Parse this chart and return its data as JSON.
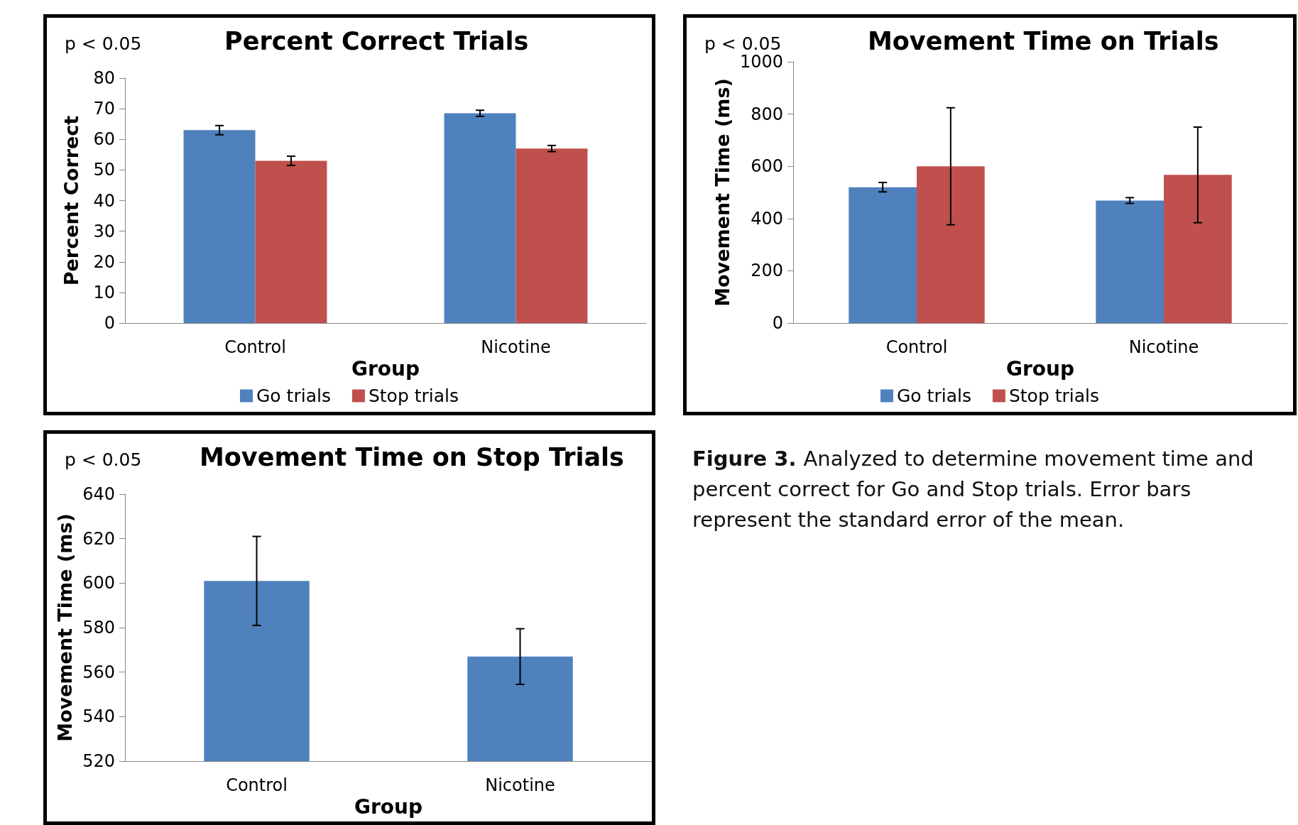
{
  "chart_data": [
    {
      "type": "bar",
      "title": "Percent Correct Trials",
      "xlabel": "Group",
      "ylabel": "Percent Correct",
      "annotations": [
        "p < 0.05"
      ],
      "categories": [
        "Control",
        "Nicotine"
      ],
      "series": [
        {
          "name": "Go trials",
          "color": "#4f81bd",
          "values": [
            63,
            68.5
          ],
          "errors": [
            1.5,
            1
          ]
        },
        {
          "name": "Stop trials",
          "color": "#c0504d",
          "values": [
            53,
            57
          ],
          "errors": [
            1.5,
            1
          ]
        }
      ],
      "ylim": [
        0,
        80
      ],
      "yticks": [
        0,
        10,
        20,
        30,
        40,
        50,
        60,
        70,
        80
      ],
      "grid": false,
      "legend": "bottom"
    },
    {
      "type": "bar",
      "title": "Movement Time on Trials",
      "xlabel": "Group",
      "ylabel": "Movement Time (ms)",
      "annotations": [
        "p < 0.05"
      ],
      "categories": [
        "Control",
        "Nicotine"
      ],
      "series": [
        {
          "name": "Go trials",
          "color": "#4f81bd",
          "values": [
            520,
            469
          ],
          "errors": [
            18,
            11
          ]
        },
        {
          "name": "Stop trials",
          "color": "#c0504d",
          "values": [
            600,
            567
          ],
          "errors": [
            224,
            183
          ]
        }
      ],
      "ylim": [
        0,
        1000
      ],
      "yticks": [
        0,
        200,
        400,
        600,
        800,
        1000
      ],
      "grid": false,
      "legend": "bottom"
    },
    {
      "type": "bar",
      "title": "Movement Time on Stop Trials",
      "xlabel": "Group",
      "ylabel": "Movement Time (ms)",
      "annotations": [
        "p < 0.05"
      ],
      "categories": [
        "Control",
        "Nicotine"
      ],
      "series": [
        {
          "color": "#4f81bd",
          "values": [
            601,
            567
          ],
          "errors": [
            20,
            12.5
          ]
        }
      ],
      "ylim": [
        520,
        640
      ],
      "yticks": [
        520,
        540,
        560,
        580,
        600,
        620,
        640
      ],
      "grid": false,
      "legend": false
    },
    {
      "type": "other",
      "title": "Figure 3.",
      "annotations": [
        "Analyzed to determine movement time and percent correct for Go and Stop trials. Error bars represent the standard error of the mean."
      ]
    }
  ]
}
